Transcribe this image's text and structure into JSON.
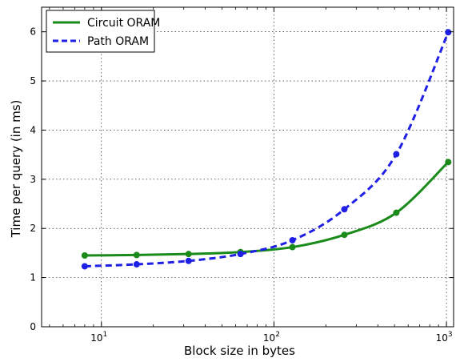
{
  "chart_data": {
    "type": "line",
    "title": "",
    "xlabel": "Block size in bytes",
    "ylabel": "Time per query (in ms)",
    "xscale": "log",
    "xlim": [
      4.5,
      1100
    ],
    "ylim": [
      0,
      6.5
    ],
    "x_ticks": [
      10,
      100,
      1000
    ],
    "x_tick_labels": [
      {
        "base": "10",
        "exp": "1"
      },
      {
        "base": "10",
        "exp": "2"
      },
      {
        "base": "10",
        "exp": "3"
      }
    ],
    "y_ticks": [
      0,
      1,
      2,
      3,
      4,
      5,
      6
    ],
    "y_tick_labels": [
      "0",
      "1",
      "2",
      "3",
      "4",
      "5",
      "6"
    ],
    "grid": true,
    "legend_position": "top-left",
    "x": [
      8,
      16,
      32,
      64,
      128,
      256,
      512,
      1024
    ],
    "series": [
      {
        "name": "Circuit ORAM",
        "color": "#1a8a1a",
        "line_style": "solid",
        "values": [
          1.45,
          1.46,
          1.48,
          1.52,
          1.62,
          1.87,
          2.32,
          3.35
        ]
      },
      {
        "name": "Path ORAM",
        "color": "#1f1fe6",
        "line_style": "dashed",
        "values": [
          1.23,
          1.27,
          1.34,
          1.48,
          1.76,
          2.39,
          3.51,
          5.99
        ]
      }
    ]
  }
}
